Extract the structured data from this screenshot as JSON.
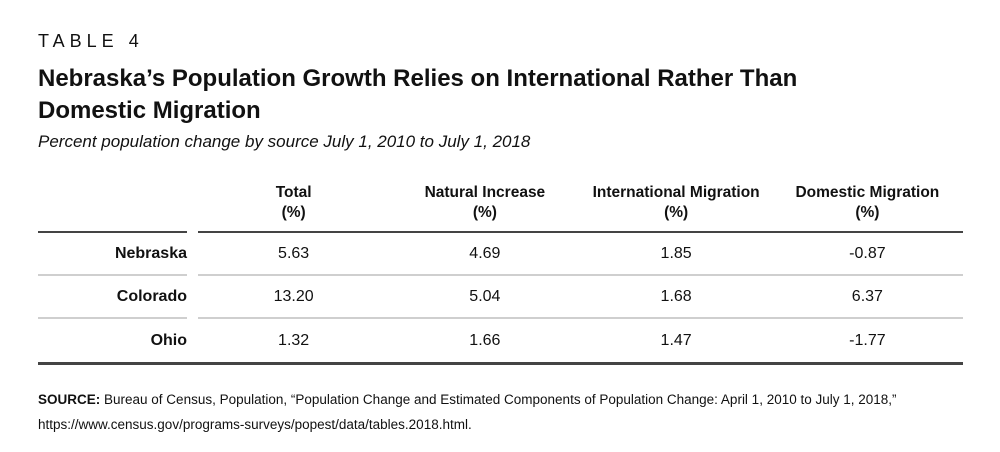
{
  "page": {
    "table_label": "TABLE 4",
    "title_line1": "Nebraska’s Population Growth Relies on International Rather Than",
    "title_line2": "Domestic Migration",
    "subtitle": "Percent population change by source July 1, 2010 to July 1, 2018"
  },
  "table": {
    "columns": [
      {
        "label": "Total",
        "unit": "(%)"
      },
      {
        "label": "Natural Increase",
        "unit": "(%)"
      },
      {
        "label": "International Migration",
        "unit": "(%)"
      },
      {
        "label": "Domestic Migration",
        "unit": "(%)"
      }
    ],
    "rows": [
      {
        "label": "Nebraska",
        "values": [
          "5.63",
          "4.69",
          "1.85",
          "-0.87"
        ]
      },
      {
        "label": "Colorado",
        "values": [
          "13.20",
          "5.04",
          "1.68",
          "6.37"
        ]
      },
      {
        "label": "Ohio",
        "values": [
          "1.32",
          "1.66",
          "1.47",
          "-1.77"
        ]
      }
    ]
  },
  "source": {
    "label": "SOURCE:",
    "text": " Bureau of Census, Population, “Population Change and Estimated Components of Population Change: April 1, 2010 to July 1, 2018,” https://www.census.gov/programs-surveys/popest/data/tables.2018.html."
  },
  "colors": {
    "text": "#111111",
    "rule_dark": "#444444",
    "rule_light": "#cfcfcf"
  },
  "chart_data": {
    "type": "table",
    "table_label": "TABLE 4",
    "title": "Nebraska’s Population Growth Relies on International Rather Than Domestic Migration",
    "subtitle": "Percent population change by source July 1, 2010 to July 1, 2018",
    "columns": [
      "Total (%)",
      "Natural Increase (%)",
      "International Migration (%)",
      "Domestic Migration (%)"
    ],
    "rows": [
      {
        "label": "Nebraska",
        "values": [
          5.63,
          4.69,
          1.85,
          -0.87
        ]
      },
      {
        "label": "Colorado",
        "values": [
          13.2,
          5.04,
          1.68,
          6.37
        ]
      },
      {
        "label": "Ohio",
        "values": [
          1.32,
          1.66,
          1.47,
          -1.77
        ]
      }
    ],
    "source": "SOURCE: Bureau of Census, Population, “Population Change and Estimated Components of Population Change: April 1, 2010 to July 1, 2018,” https://www.census.gov/programs-surveys/popest/data/tables.2018.html."
  }
}
